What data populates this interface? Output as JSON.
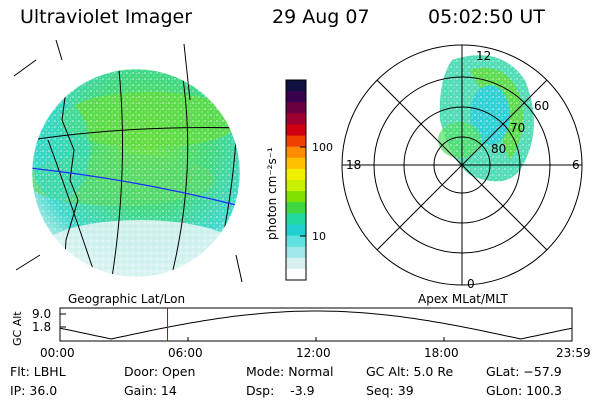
{
  "header": {
    "instrument": "Ultraviolet Imager",
    "date": "29 Aug 07",
    "time": "05:02:50 UT"
  },
  "colorbar": {
    "label": "photon cm⁻²s⁻¹",
    "ticks": [
      "100",
      "10"
    ],
    "colors": [
      "#101040",
      "#3a0050",
      "#6a0040",
      "#a00030",
      "#d00010",
      "#f04000",
      "#ff8c00",
      "#ffc000",
      "#f0f000",
      "#c8f000",
      "#80e000",
      "#40d840",
      "#20d8a0",
      "#20d0d0",
      "#60e0e0",
      "#a0e8e8",
      "#d8f0f0",
      "#ffffff"
    ]
  },
  "left_panel": {
    "caption": "Geographic Lat/Lon"
  },
  "right_panel": {
    "caption": "Apex MLat/MLT",
    "mlt_labels": {
      "top": "12",
      "left": "18",
      "right": "6",
      "bottom": "0"
    },
    "mlat_labels": [
      "60",
      "70",
      "80"
    ]
  },
  "altitude_plot": {
    "ylabel": "GC Alt",
    "yticks": [
      "9.0",
      "1.8"
    ],
    "xticks": [
      "00:00",
      "06:00",
      "12:00",
      "18:00",
      "23:59"
    ],
    "current_time_fraction": 0.21
  },
  "info": {
    "flt": "Flt: LBHL",
    "ip": "IP: 36.0",
    "door": "Door: Open",
    "gain": "Gain: 14",
    "mode": "Mode: Normal",
    "dsp": "Dsp:    -3.9",
    "gcalt": "GC Alt: 5.0 Re",
    "seq": "Seq: 39",
    "glat": "GLat: −57.9",
    "glon": "GLon: 100.3"
  }
}
